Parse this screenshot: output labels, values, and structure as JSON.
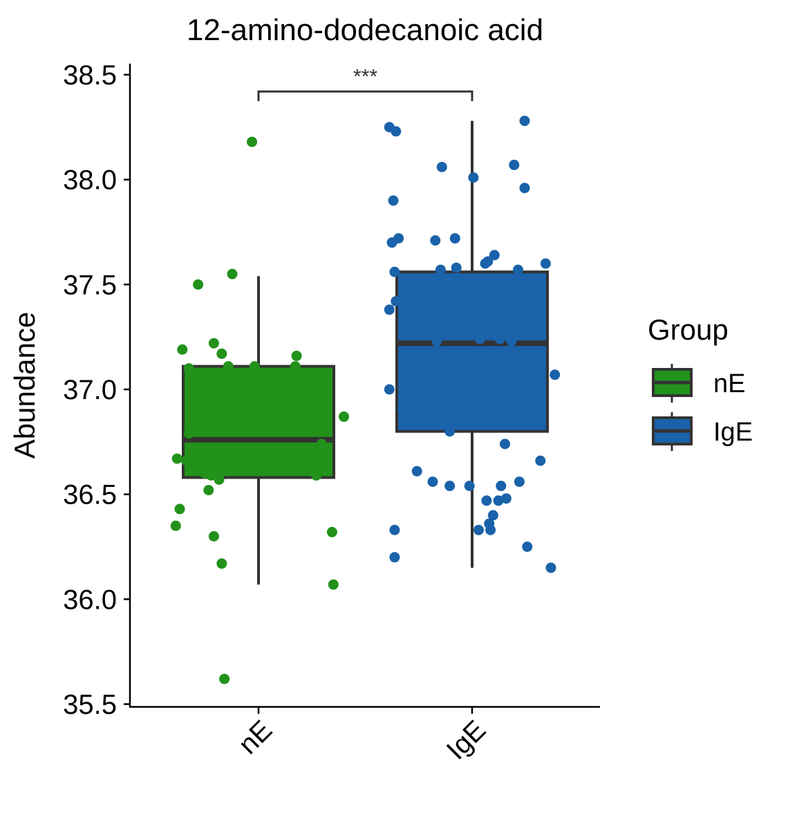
{
  "chart_data": {
    "type": "box",
    "title": "12-amino-dodecanoic acid",
    "xlabel": "",
    "ylabel": "Abundance",
    "ylim": [
      35.5,
      38.55
    ],
    "yticks": [
      "35.5",
      "36.0",
      "36.5",
      "37.0",
      "37.5",
      "38.0",
      "38.5"
    ],
    "categories": [
      "nE",
      "IgE"
    ],
    "legend": {
      "title": "Group",
      "position": "right",
      "entries": [
        "nE",
        "IgE"
      ]
    },
    "colors": {
      "nE": "#22921A",
      "IgE": "#1A62A9",
      "outline": "#333333",
      "axis": "#000000"
    },
    "significance": {
      "label": "***",
      "between": [
        "nE",
        "IgE"
      ],
      "y": 38.42
    },
    "series": [
      {
        "name": "nE",
        "box": {
          "whisker_low": 36.07,
          "q1": 36.58,
          "median": 36.76,
          "q3": 37.11,
          "whisker_high": 37.54
        },
        "points": [
          [
            -0.05,
            38.18
          ],
          [
            -0.2,
            37.55
          ],
          [
            -0.46,
            37.5
          ],
          [
            -0.34,
            37.22
          ],
          [
            -0.58,
            37.19
          ],
          [
            -0.28,
            37.17
          ],
          [
            0.29,
            37.16
          ],
          [
            -0.23,
            37.11
          ],
          [
            -0.03,
            37.11
          ],
          [
            0.28,
            37.11
          ],
          [
            -0.53,
            37.1
          ],
          [
            0.65,
            36.87
          ],
          [
            -0.53,
            36.79
          ],
          [
            0.48,
            36.74
          ],
          [
            -0.62,
            36.67
          ],
          [
            -0.55,
            36.66
          ],
          [
            0.46,
            36.65
          ],
          [
            -0.41,
            36.6
          ],
          [
            -0.36,
            36.59
          ],
          [
            0.44,
            36.59
          ],
          [
            -0.3,
            36.57
          ],
          [
            -0.38,
            36.52
          ],
          [
            -0.6,
            36.43
          ],
          [
            -0.63,
            36.35
          ],
          [
            0.56,
            36.32
          ],
          [
            -0.34,
            36.3
          ],
          [
            -0.28,
            36.17
          ],
          [
            0.57,
            36.07
          ],
          [
            -0.26,
            35.62
          ]
        ]
      },
      {
        "name": "IgE",
        "points": [
          [
            0.4,
            38.28
          ],
          [
            -0.63,
            38.25
          ],
          [
            -0.58,
            38.23
          ],
          [
            -0.23,
            38.06
          ],
          [
            0.01,
            38.01
          ],
          [
            0.32,
            38.07
          ],
          [
            0.4,
            37.96
          ],
          [
            -0.6,
            37.9
          ],
          [
            -0.56,
            37.72
          ],
          [
            -0.61,
            37.7
          ],
          [
            -0.28,
            37.71
          ],
          [
            -0.13,
            37.72
          ],
          [
            0.17,
            37.64
          ],
          [
            0.12,
            37.61
          ],
          [
            0.1,
            37.6
          ],
          [
            0.35,
            37.57
          ],
          [
            0.56,
            37.6
          ],
          [
            -0.24,
            37.57
          ],
          [
            -0.12,
            37.58
          ],
          [
            -0.59,
            37.56
          ],
          [
            -0.58,
            37.42
          ],
          [
            -0.63,
            37.38
          ],
          [
            0.52,
            37.34
          ],
          [
            0.06,
            37.24
          ],
          [
            0.21,
            37.24
          ],
          [
            -0.27,
            37.23
          ],
          [
            0.3,
            37.23
          ],
          [
            0.63,
            37.07
          ],
          [
            -0.63,
            37.0
          ],
          [
            -0.53,
            36.91
          ],
          [
            0.47,
            36.9
          ],
          [
            -0.17,
            36.8
          ],
          [
            0.25,
            36.74
          ],
          [
            0.52,
            36.66
          ],
          [
            -0.42,
            36.61
          ],
          [
            -0.3,
            36.56
          ],
          [
            0.36,
            36.56
          ],
          [
            -0.17,
            36.54
          ],
          [
            -0.02,
            36.54
          ],
          [
            0.22,
            36.54
          ],
          [
            0.11,
            36.47
          ],
          [
            0.26,
            36.48
          ],
          [
            0.2,
            36.47
          ],
          [
            0.16,
            36.4
          ],
          [
            0.13,
            36.36
          ],
          [
            0.05,
            36.33
          ],
          [
            0.14,
            36.33
          ],
          [
            -0.59,
            36.33
          ],
          [
            0.42,
            36.25
          ],
          [
            -0.59,
            36.2
          ],
          [
            0.6,
            36.15
          ]
        ],
        "box": {
          "whisker_low": 36.15,
          "q1": 36.8,
          "median": 37.22,
          "q3": 37.56,
          "whisker_high": 38.28
        }
      }
    ]
  }
}
